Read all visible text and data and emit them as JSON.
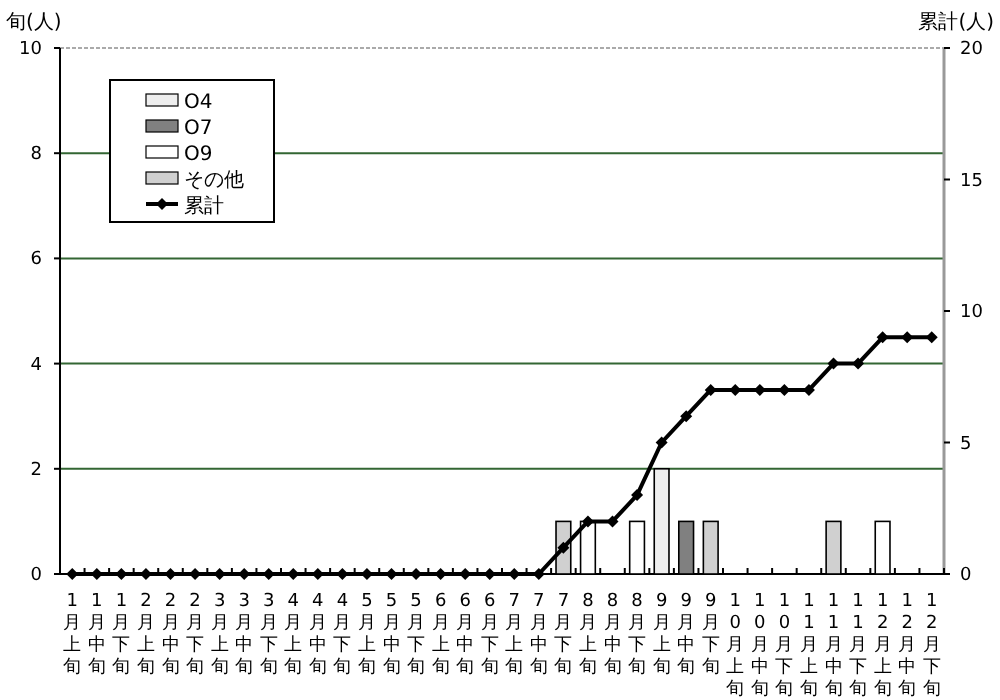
{
  "chart_data": {
    "type": "bar",
    "ylabel": "旬(人)",
    "y2label": "累計(人)",
    "categories": [
      "1月上旬",
      "1月中旬",
      "1月下旬",
      "2月上旬",
      "2月中旬",
      "2月下旬",
      "3月上旬",
      "3月中旬",
      "3月下旬",
      "4月上旬",
      "4月中旬",
      "4月下旬",
      "5月上旬",
      "5月中旬",
      "5月下旬",
      "6月上旬",
      "6月中旬",
      "6月下旬",
      "7月上旬",
      "7月中旬",
      "7月下旬",
      "8月上旬",
      "8月中旬",
      "8月下旬",
      "9月上旬",
      "9月中旬",
      "9月下旬",
      "10月上旬",
      "10月中旬",
      "10月下旬",
      "11月上旬",
      "11月中旬",
      "11月下旬",
      "12月上旬",
      "12月中旬",
      "12月下旬"
    ],
    "series": [
      {
        "name": "O4",
        "color": "#eeeeee",
        "values": [
          0,
          0,
          0,
          0,
          0,
          0,
          0,
          0,
          0,
          0,
          0,
          0,
          0,
          0,
          0,
          0,
          0,
          0,
          0,
          0,
          0,
          0,
          0,
          0,
          2,
          0,
          0,
          0,
          0,
          0,
          0,
          0,
          0,
          0,
          0,
          0
        ]
      },
      {
        "name": "O7",
        "color": "#808080",
        "values": [
          0,
          0,
          0,
          0,
          0,
          0,
          0,
          0,
          0,
          0,
          0,
          0,
          0,
          0,
          0,
          0,
          0,
          0,
          0,
          0,
          0,
          0,
          0,
          0,
          0,
          1,
          0,
          0,
          0,
          0,
          0,
          0,
          0,
          0,
          0,
          0
        ]
      },
      {
        "name": "O9",
        "color": "#ffffff",
        "values": [
          0,
          0,
          0,
          0,
          0,
          0,
          0,
          0,
          0,
          0,
          0,
          0,
          0,
          0,
          0,
          0,
          0,
          0,
          0,
          0,
          0,
          1,
          0,
          1,
          0,
          0,
          0,
          0,
          0,
          0,
          0,
          0,
          0,
          1,
          0,
          0
        ]
      },
      {
        "name": "その他",
        "color": "#d0d0d0",
        "values": [
          0,
          0,
          0,
          0,
          0,
          0,
          0,
          0,
          0,
          0,
          0,
          0,
          0,
          0,
          0,
          0,
          0,
          0,
          0,
          0,
          1,
          0,
          0,
          0,
          0,
          0,
          1,
          0,
          0,
          0,
          0,
          1,
          0,
          0,
          0,
          0
        ]
      },
      {
        "name": "累計",
        "type": "line",
        "axis": "y2",
        "color": "#000000",
        "marker": "diamond",
        "values": [
          0,
          0,
          0,
          0,
          0,
          0,
          0,
          0,
          0,
          0,
          0,
          0,
          0,
          0,
          0,
          0,
          0,
          0,
          0,
          0,
          1,
          2,
          2,
          3,
          5,
          6,
          7,
          7,
          7,
          7,
          7,
          8,
          8,
          9,
          9,
          9
        ]
      }
    ],
    "ylim": [
      0,
      10
    ],
    "yticks": [
      0,
      2,
      4,
      6,
      8,
      10
    ],
    "y2lim": [
      0,
      20
    ],
    "y2ticks": [
      0,
      5,
      10,
      15,
      20
    ],
    "grid": "y",
    "legend": "top left"
  }
}
